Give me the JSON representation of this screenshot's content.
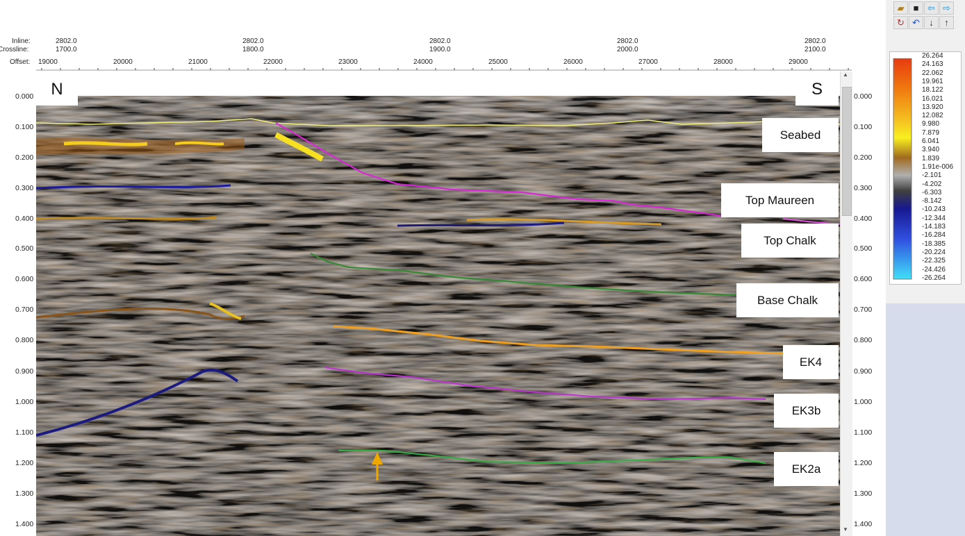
{
  "header": {
    "inline_label": "Inline:",
    "crossline_label": "Crossline:",
    "offset_label": "Offset:",
    "columns": [
      {
        "inline": "2802.0",
        "crossline": "1700.0"
      },
      {
        "inline": "2802.0",
        "crossline": "1800.0"
      },
      {
        "inline": "2802.0",
        "crossline": "1900.0"
      },
      {
        "inline": "2802.0",
        "crossline": "2000.0"
      },
      {
        "inline": "2802.0",
        "crossline": "2100.0"
      }
    ],
    "offsets": [
      "19000",
      "20000",
      "21000",
      "22000",
      "23000",
      "24000",
      "25000",
      "26000",
      "27000",
      "28000",
      "29000"
    ]
  },
  "time_axis": [
    "0.000",
    "0.100",
    "0.200",
    "0.300",
    "0.400",
    "0.500",
    "0.600",
    "0.700",
    "0.800",
    "0.900",
    "1.000",
    "1.100",
    "1.200",
    "1.300",
    "1.400"
  ],
  "directions": {
    "left": "N",
    "right": "S"
  },
  "horizons": [
    {
      "name": "Seabed",
      "color": "#f2f07a"
    },
    {
      "name": "Top Maureen",
      "color": "#e020e0"
    },
    {
      "name": "Top Chalk",
      "color": "#e050e0"
    },
    {
      "name": "Base Chalk",
      "color": "#2e8b2e"
    },
    {
      "name": "EK4",
      "color": "#f0a020"
    },
    {
      "name": "EK3b",
      "color": "#c030d8"
    },
    {
      "name": "EK2a",
      "color": "#30b040"
    }
  ],
  "colorbar": {
    "labels": [
      "26.264",
      "24.163",
      "22.062",
      "19.961",
      "18.122",
      "16.021",
      "13.920",
      "12.082",
      "9.980",
      "7.879",
      "6.041",
      "3.940",
      "1.839",
      "1.91e-006",
      "-2.101",
      "-4.202",
      "-6.303",
      "-8.142",
      "-10.243",
      "-12.344",
      "-14.183",
      "-16.284",
      "-18.385",
      "-20.224",
      "-22.325",
      "-24.426",
      "-26.264"
    ],
    "colors": [
      "#e83a10",
      "#f07a10",
      "#f5c020",
      "#f8f020",
      "#a06a20",
      "#b0b0b0",
      "#404040",
      "#181890",
      "#3050e0",
      "#40e0f8"
    ]
  },
  "toolbar": {
    "icons": [
      "open-folder-icon",
      "save-icon",
      "arrow-left-icon",
      "arrow-right-icon",
      "refresh-icon",
      "undo-icon",
      "sort-down-icon",
      "sort-up-icon"
    ]
  },
  "annotation": {
    "arrow_color": "#f0a800"
  }
}
